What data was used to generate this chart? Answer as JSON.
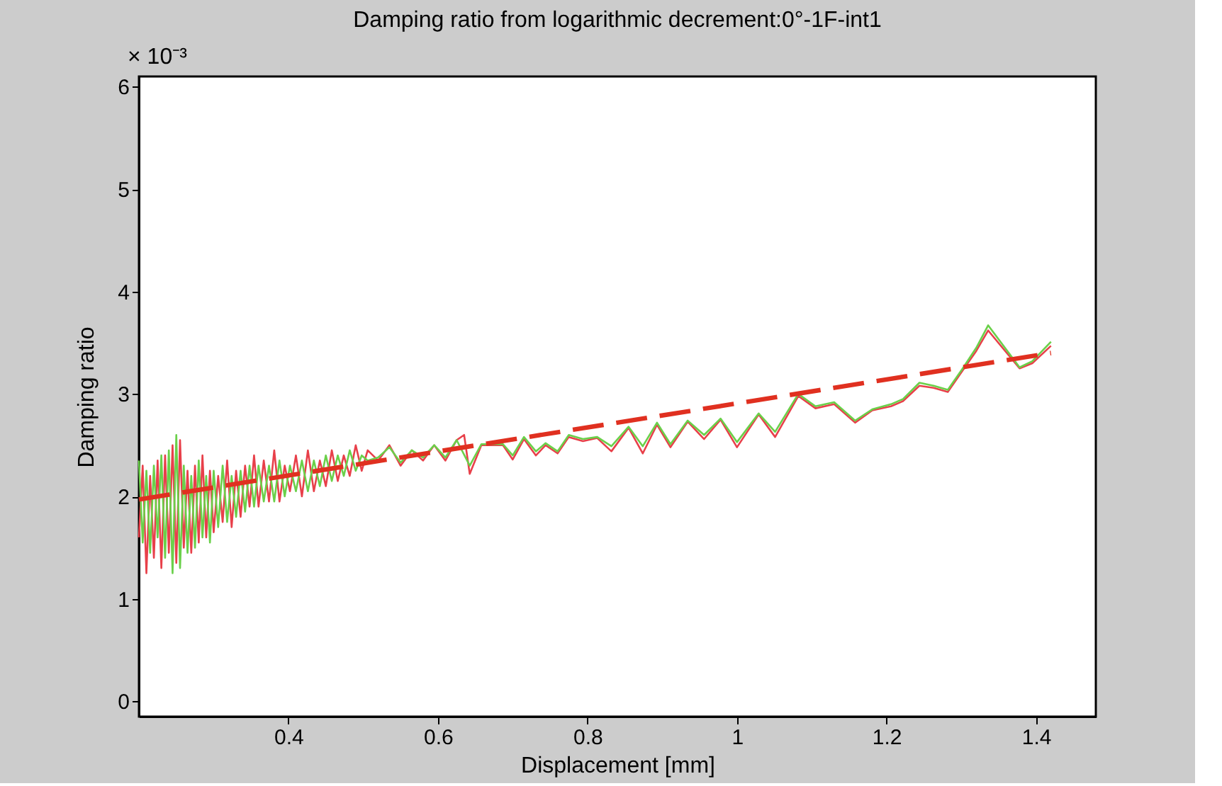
{
  "chart_data": {
    "type": "line",
    "title": "Damping ratio from logarithmic decrement:0°-1F-int1",
    "xlabel": "Displacement [mm]",
    "ylabel": "Damping ratio",
    "annotations": [
      "× 10⁻³"
    ],
    "xlim": [
      0.2,
      1.48
    ],
    "ylim": [
      -0.15,
      6.1
    ],
    "xticks": [
      0.4,
      0.6,
      0.8,
      1,
      1.2,
      1.4
    ],
    "yticks": [
      0,
      1,
      2,
      3,
      4,
      5,
      6
    ],
    "grid": false,
    "legend": false,
    "marker": "none",
    "series": [
      {
        "color": "#e8404a",
        "line_style": "solid",
        "x": [
          0.2,
          0.205,
          0.21,
          0.215,
          0.22,
          0.225,
          0.23,
          0.235,
          0.24,
          0.245,
          0.25,
          0.255,
          0.26,
          0.265,
          0.27,
          0.275,
          0.28,
          0.285,
          0.29,
          0.295,
          0.3,
          0.306,
          0.312,
          0.318,
          0.324,
          0.33,
          0.336,
          0.342,
          0.348,
          0.354,
          0.36,
          0.367,
          0.374,
          0.381,
          0.388,
          0.395,
          0.402,
          0.41,
          0.418,
          0.426,
          0.434,
          0.442,
          0.45,
          0.458,
          0.466,
          0.474,
          0.482,
          0.49,
          0.498,
          0.506,
          0.52,
          0.535,
          0.55,
          0.565,
          0.58,
          0.595,
          0.61,
          0.625,
          0.635,
          0.6425,
          0.658,
          0.687,
          0.7,
          0.715,
          0.731,
          0.744,
          0.76,
          0.775,
          0.794,
          0.813,
          0.832,
          0.855,
          0.874,
          0.893,
          0.911,
          0.934,
          0.956,
          0.978,
          1.0,
          1.029,
          1.051,
          1.082,
          1.105,
          1.13,
          1.158,
          1.181,
          1.206,
          1.222,
          1.244,
          1.263,
          1.282,
          1.301,
          1.32,
          1.336,
          1.378,
          1.395,
          1.42
        ],
        "values": [
          1.6,
          2.3,
          1.25,
          2.2,
          1.4,
          2.35,
          1.3,
          2.4,
          1.45,
          2.5,
          1.35,
          2.55,
          1.5,
          2.25,
          1.45,
          2.3,
          1.55,
          2.4,
          1.6,
          2.25,
          1.65,
          2.2,
          1.75,
          2.35,
          1.7,
          2.25,
          1.8,
          2.3,
          1.9,
          2.4,
          1.9,
          2.35,
          1.95,
          2.45,
          1.95,
          2.3,
          2.05,
          2.4,
          2.0,
          2.45,
          2.05,
          2.35,
          2.1,
          2.45,
          2.15,
          2.4,
          2.2,
          2.5,
          2.25,
          2.45,
          2.35,
          2.5,
          2.3,
          2.45,
          2.35,
          2.5,
          2.35,
          2.55,
          2.6,
          2.22,
          2.5,
          2.5,
          2.36,
          2.56,
          2.4,
          2.5,
          2.42,
          2.58,
          2.54,
          2.57,
          2.44,
          2.67,
          2.42,
          2.7,
          2.48,
          2.73,
          2.56,
          2.75,
          2.48,
          2.8,
          2.58,
          2.98,
          2.86,
          2.9,
          2.72,
          2.84,
          2.88,
          2.93,
          3.08,
          3.06,
          3.02,
          3.22,
          3.42,
          3.62,
          3.25,
          3.3,
          3.47
        ]
      },
      {
        "color": "#6ad04a",
        "line_style": "solid",
        "x": [
          0.2,
          0.205,
          0.21,
          0.215,
          0.22,
          0.225,
          0.23,
          0.235,
          0.24,
          0.245,
          0.25,
          0.255,
          0.26,
          0.265,
          0.27,
          0.275,
          0.28,
          0.285,
          0.29,
          0.295,
          0.3,
          0.306,
          0.312,
          0.318,
          0.324,
          0.33,
          0.336,
          0.342,
          0.348,
          0.354,
          0.36,
          0.367,
          0.374,
          0.381,
          0.388,
          0.395,
          0.402,
          0.41,
          0.418,
          0.426,
          0.434,
          0.442,
          0.45,
          0.458,
          0.466,
          0.474,
          0.482,
          0.49,
          0.498,
          0.506,
          0.52,
          0.535,
          0.55,
          0.565,
          0.58,
          0.595,
          0.61,
          0.625,
          0.6425,
          0.658,
          0.687,
          0.7,
          0.715,
          0.731,
          0.744,
          0.76,
          0.775,
          0.794,
          0.813,
          0.832,
          0.855,
          0.874,
          0.893,
          0.911,
          0.934,
          0.956,
          0.978,
          1.0,
          1.029,
          1.051,
          1.082,
          1.105,
          1.13,
          1.158,
          1.181,
          1.206,
          1.222,
          1.244,
          1.263,
          1.282,
          1.301,
          1.32,
          1.336,
          1.378,
          1.395,
          1.42
        ],
        "values": [
          2.35,
          1.55,
          2.25,
          1.45,
          2.3,
          1.6,
          2.4,
          1.4,
          2.45,
          1.25,
          2.6,
          1.3,
          2.3,
          1.45,
          2.2,
          1.5,
          2.35,
          1.6,
          2.2,
          1.55,
          2.25,
          1.7,
          2.3,
          1.75,
          2.2,
          1.8,
          2.25,
          1.85,
          2.3,
          1.9,
          2.3,
          1.95,
          2.3,
          1.95,
          2.35,
          2.0,
          2.3,
          2.05,
          2.35,
          2.05,
          2.35,
          2.1,
          2.4,
          2.15,
          2.4,
          2.2,
          2.45,
          2.25,
          2.4,
          2.35,
          2.38,
          2.48,
          2.33,
          2.45,
          2.38,
          2.5,
          2.38,
          2.55,
          2.3,
          2.51,
          2.51,
          2.4,
          2.58,
          2.44,
          2.52,
          2.44,
          2.6,
          2.56,
          2.58,
          2.49,
          2.68,
          2.49,
          2.72,
          2.51,
          2.74,
          2.6,
          2.76,
          2.53,
          2.81,
          2.63,
          3.0,
          2.88,
          2.92,
          2.74,
          2.85,
          2.9,
          2.95,
          3.11,
          3.08,
          3.04,
          3.24,
          3.45,
          3.67,
          3.26,
          3.32,
          3.51
        ]
      },
      {
        "color": "#e03020",
        "line_style": "dashed",
        "x": [
          0.2,
          1.42
        ],
        "values": [
          1.97,
          3.4
        ]
      }
    ]
  }
}
